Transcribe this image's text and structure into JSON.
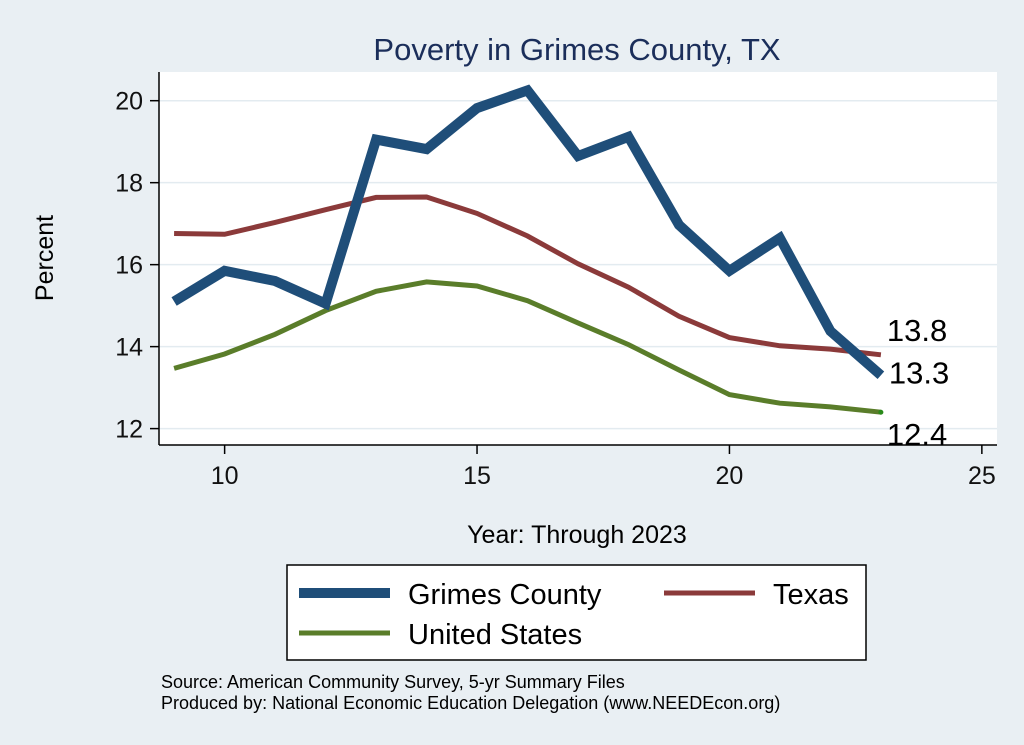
{
  "chart_data": {
    "type": "line",
    "title": "Poverty in Grimes County, TX",
    "xlabel": "Year: Through 2023",
    "ylabel": "Percent",
    "xlim": [
      8.7,
      25.3
    ],
    "ylim": [
      11.6,
      20.7
    ],
    "xticks": [
      10,
      15,
      20,
      25
    ],
    "yticks": [
      12,
      14,
      16,
      18,
      20
    ],
    "grid": "horizontal",
    "legend_position": "bottom",
    "series": [
      {
        "name": "Grimes County",
        "color": "#1f4e79",
        "x": [
          9,
          10,
          11,
          12,
          13,
          14,
          15,
          16,
          17,
          18,
          19,
          20,
          21,
          22,
          23
        ],
        "values": [
          15.1,
          15.85,
          15.6,
          15.05,
          19.05,
          18.82,
          19.82,
          20.25,
          18.65,
          19.12,
          16.97,
          15.85,
          16.65,
          14.38,
          13.3
        ],
        "end_label": "13.3"
      },
      {
        "name": "Texas",
        "color": "#8b3a3a",
        "x": [
          9,
          10,
          11,
          12,
          13,
          14,
          15,
          16,
          17,
          18,
          19,
          20,
          21,
          22,
          23
        ],
        "values": [
          16.76,
          16.74,
          17.03,
          17.34,
          17.64,
          17.65,
          17.25,
          16.7,
          16.02,
          15.45,
          14.74,
          14.22,
          14.02,
          13.94,
          13.8
        ],
        "end_label": "13.8"
      },
      {
        "name": "United States",
        "color": "#5a7d2a",
        "x": [
          9,
          10,
          11,
          12,
          13,
          14,
          15,
          16,
          17,
          18,
          19,
          20,
          21,
          22,
          23
        ],
        "values": [
          13.47,
          13.82,
          14.3,
          14.88,
          15.35,
          15.58,
          15.48,
          15.12,
          14.58,
          14.05,
          13.43,
          12.83,
          12.62,
          12.53,
          12.4
        ],
        "end_label": "12.4"
      }
    ]
  },
  "source_lines": [
    "Source: American Community Survey, 5-yr Summary Files",
    "Produced by: National Economic Education Delegation (www.NEEDEcon.org)"
  ]
}
